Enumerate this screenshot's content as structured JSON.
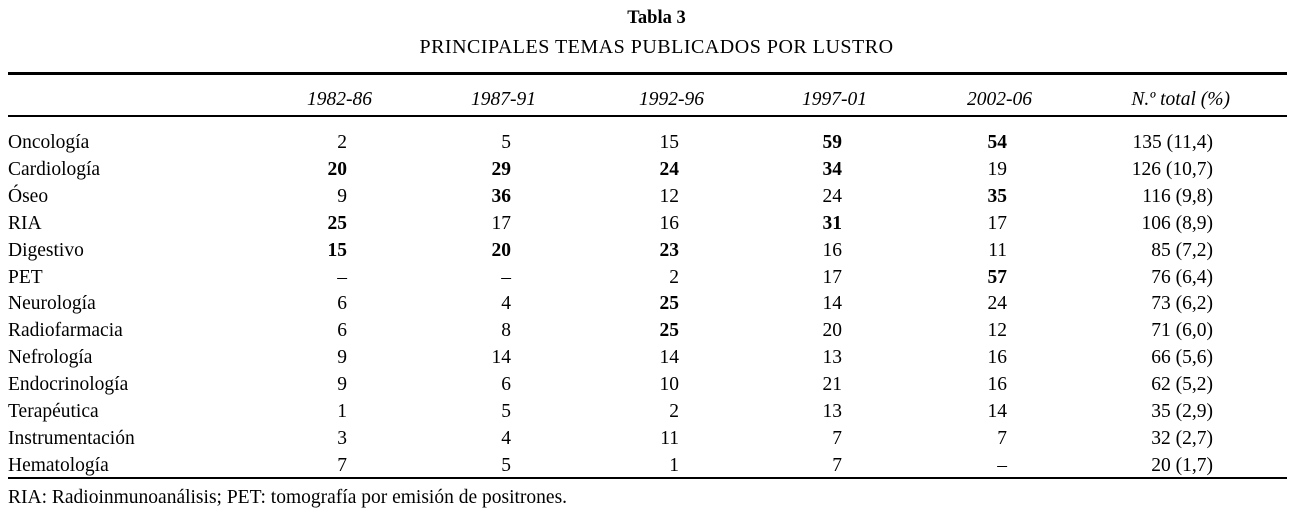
{
  "title": "Tabla 3",
  "subtitle": "PRINCIPALES TEMAS PUBLICADOS POR LUSTRO",
  "footnote": "RIA: Radioinmunoanálisis; PET: tomografía por emisión de positrones.",
  "colors": {
    "background": "#ffffff",
    "text": "#000000",
    "rule": "#000000"
  },
  "table": {
    "columns": [
      "1982-86",
      "1987-91",
      "1992-96",
      "1997-01",
      "2002-06",
      "N.º total (%)"
    ],
    "rows": [
      {
        "label": "Oncología",
        "cells": [
          "2",
          "5",
          "15",
          "59",
          "54",
          "135 (11,4)"
        ],
        "bold": [
          false,
          false,
          false,
          true,
          true,
          false
        ]
      },
      {
        "label": "Cardiología",
        "cells": [
          "20",
          "29",
          "24",
          "34",
          "19",
          "126 (10,7)"
        ],
        "bold": [
          true,
          true,
          true,
          true,
          false,
          false
        ]
      },
      {
        "label": "Óseo",
        "cells": [
          "9",
          "36",
          "12",
          "24",
          "35",
          "116 (9,8)"
        ],
        "bold": [
          false,
          true,
          false,
          false,
          true,
          false
        ]
      },
      {
        "label": "RIA",
        "cells": [
          "25",
          "17",
          "16",
          "31",
          "17",
          "106 (8,9)"
        ],
        "bold": [
          true,
          false,
          false,
          true,
          false,
          false
        ]
      },
      {
        "label": "Digestivo",
        "cells": [
          "15",
          "20",
          "23",
          "16",
          "11",
          "85 (7,2)"
        ],
        "bold": [
          true,
          true,
          true,
          false,
          false,
          false
        ]
      },
      {
        "label": "PET",
        "cells": [
          "–",
          "–",
          "2",
          "17",
          "57",
          "76 (6,4)"
        ],
        "bold": [
          false,
          false,
          false,
          false,
          true,
          false
        ]
      },
      {
        "label": "Neurología",
        "cells": [
          "6",
          "4",
          "25",
          "14",
          "24",
          "73 (6,2)"
        ],
        "bold": [
          false,
          false,
          true,
          false,
          false,
          false
        ]
      },
      {
        "label": "Radiofarmacia",
        "cells": [
          "6",
          "8",
          "25",
          "20",
          "12",
          "71 (6,0)"
        ],
        "bold": [
          false,
          false,
          true,
          false,
          false,
          false
        ]
      },
      {
        "label": "Nefrología",
        "cells": [
          "9",
          "14",
          "14",
          "13",
          "16",
          "66 (5,6)"
        ],
        "bold": [
          false,
          false,
          false,
          false,
          false,
          false
        ]
      },
      {
        "label": "Endocrinología",
        "cells": [
          "9",
          "6",
          "10",
          "21",
          "16",
          "62 (5,2)"
        ],
        "bold": [
          false,
          false,
          false,
          false,
          false,
          false
        ]
      },
      {
        "label": "Terapéutica",
        "cells": [
          "1",
          "5",
          "2",
          "13",
          "14",
          "35 (2,9)"
        ],
        "bold": [
          false,
          false,
          false,
          false,
          false,
          false
        ]
      },
      {
        "label": "Instrumentación",
        "cells": [
          "3",
          "4",
          "11",
          "7",
          "7",
          "32 (2,7)"
        ],
        "bold": [
          false,
          false,
          false,
          false,
          false,
          false
        ]
      },
      {
        "label": "Hematología",
        "cells": [
          "7",
          "5",
          "1",
          "7",
          "–",
          "20 (1,7)"
        ],
        "bold": [
          false,
          false,
          false,
          false,
          false,
          false
        ]
      }
    ]
  }
}
